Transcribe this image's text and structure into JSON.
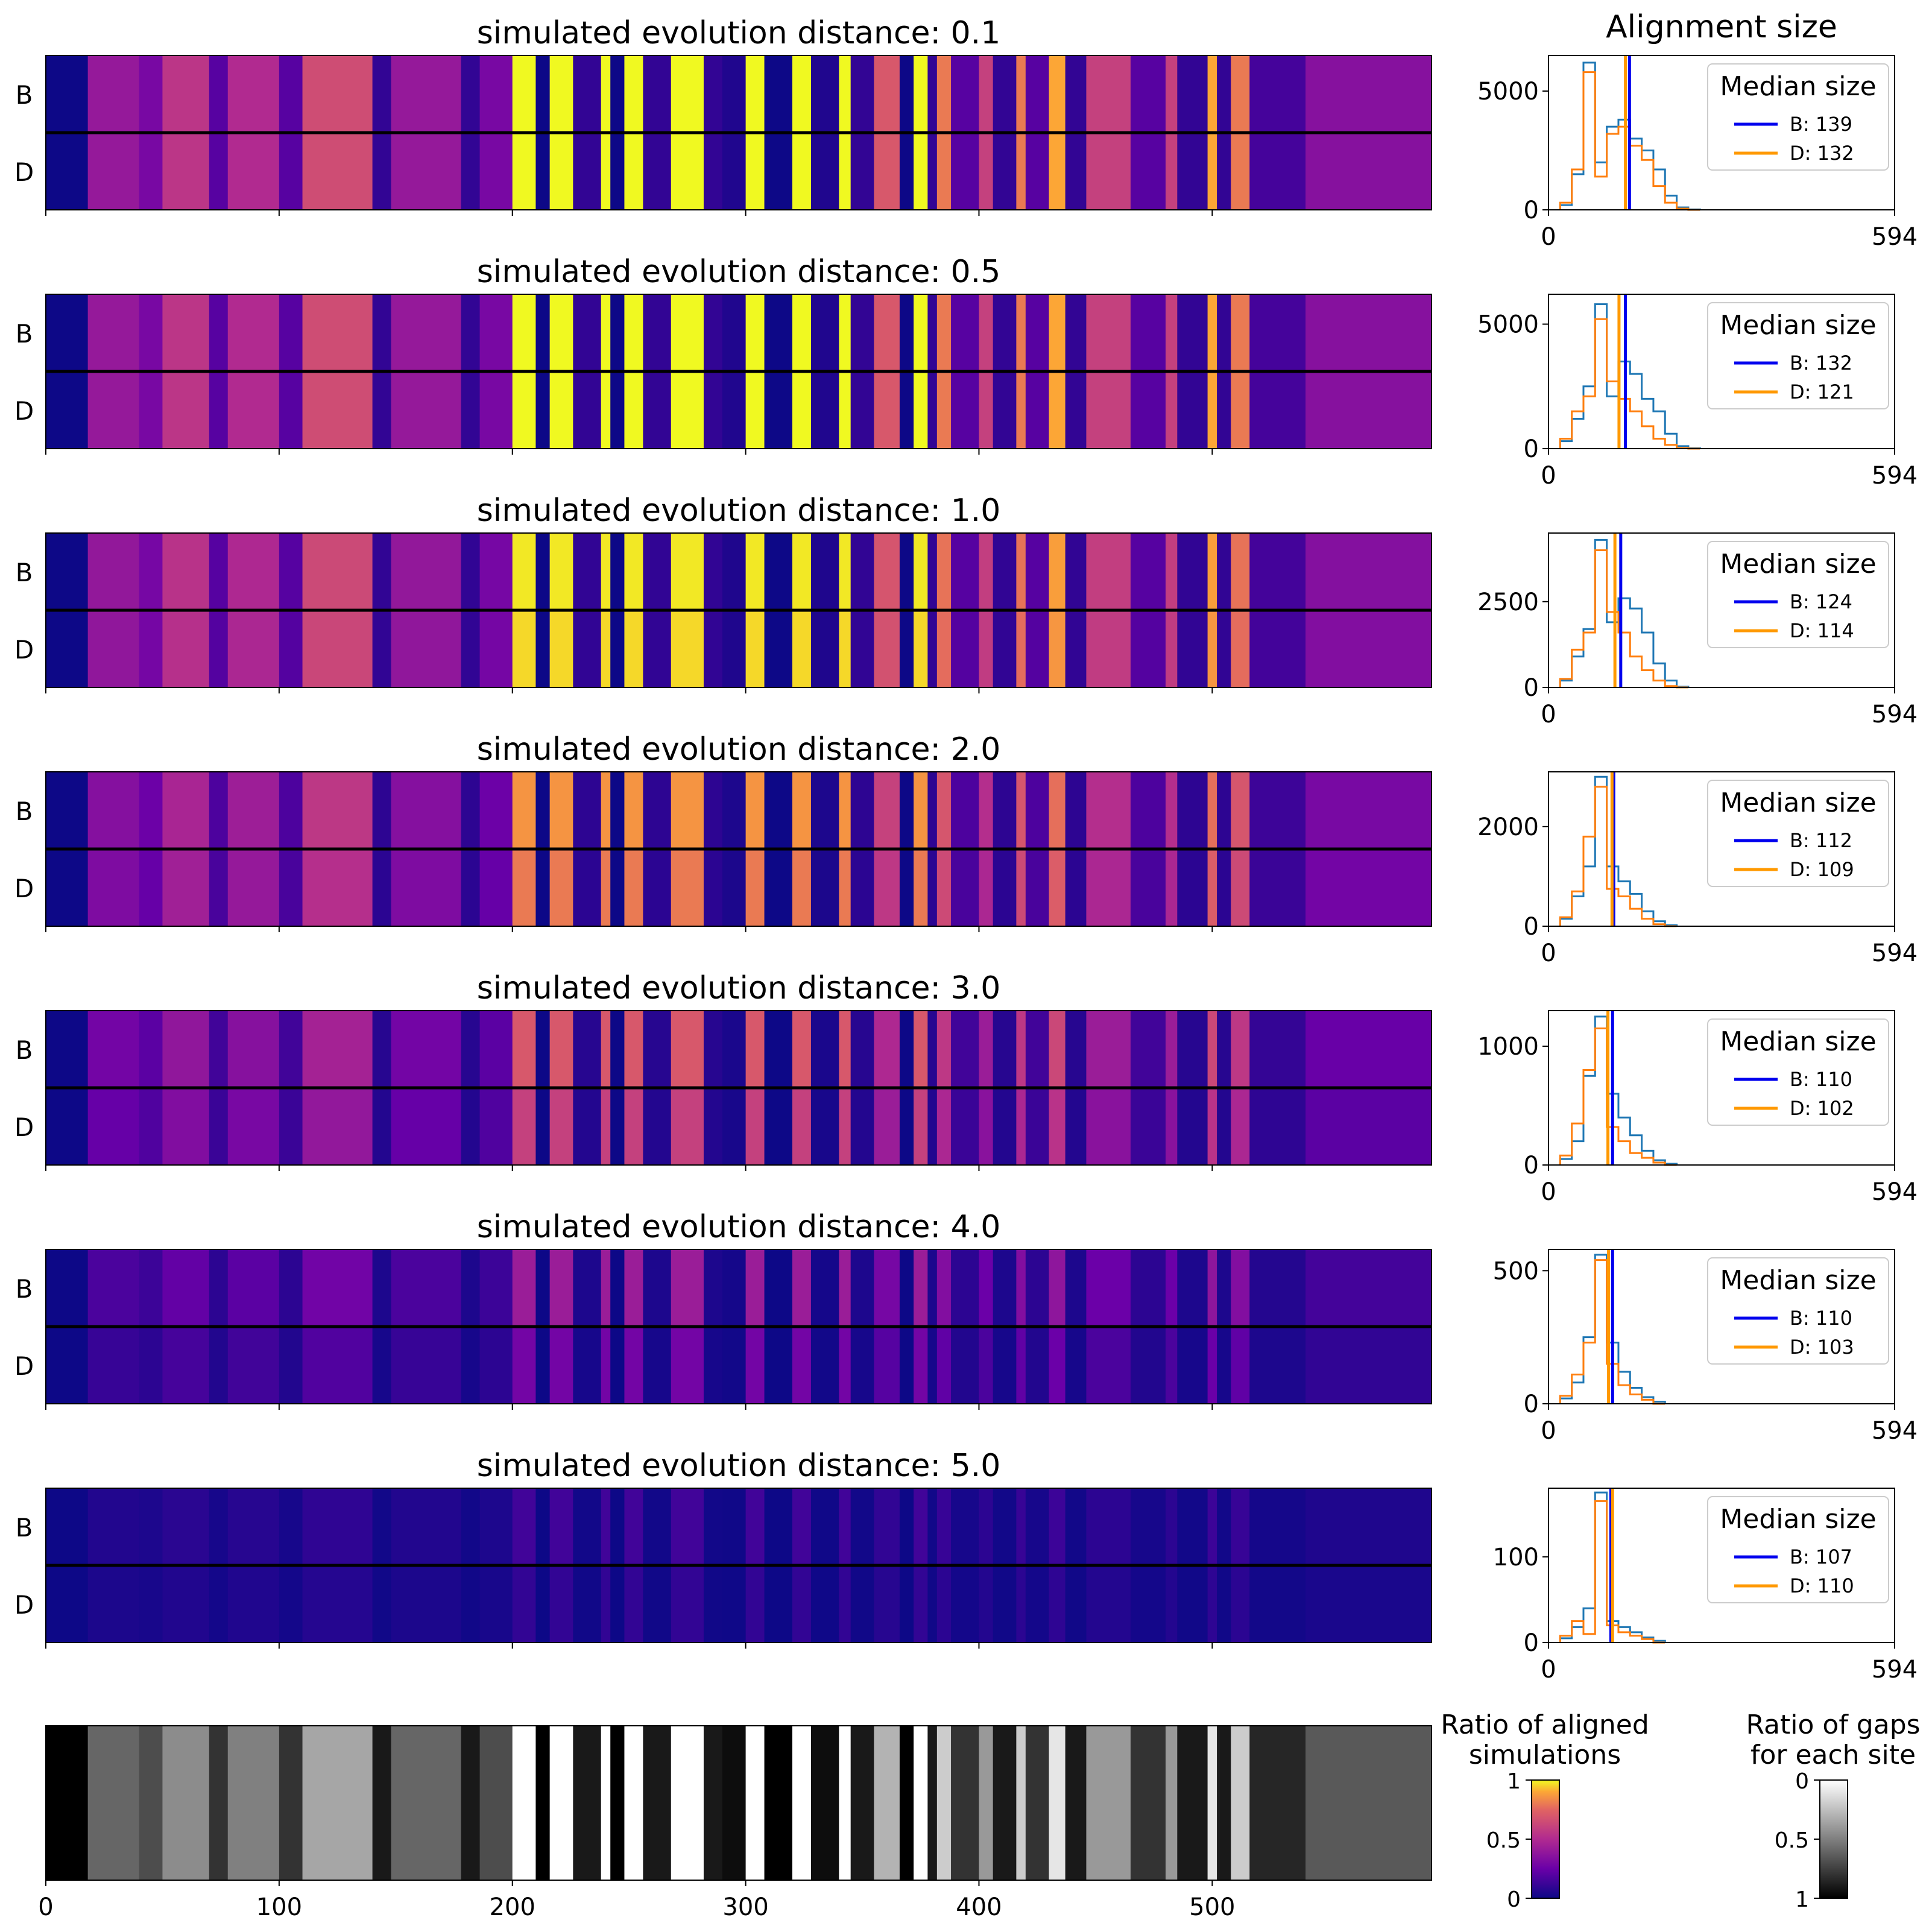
{
  "figure": {
    "hist_column_title": "Alignment size",
    "legend_title": "Median size",
    "row_labels": [
      "B",
      "D"
    ],
    "colorbar_plasma": {
      "title_line1": "Ratio of aligned",
      "title_line2": "simulations",
      "ticks": [
        "1",
        "0.5",
        "0"
      ]
    },
    "colorbar_gray": {
      "title_line1": "Ratio of gaps",
      "title_line2": "for each site",
      "ticks": [
        "0",
        "0.5",
        "1"
      ]
    },
    "colors": {
      "B": "#0000ee",
      "D": "#ff9900",
      "hist_B": "#1f77b4",
      "hist_D": "#ff7f0e"
    }
  },
  "chart_data": [
    {
      "type": "heatmap",
      "title": "simulated evolution distance: 0.1",
      "distance": 0.1,
      "intensity": 1.0,
      "bd_bias": 0.0,
      "xlim": [
        0,
        594
      ],
      "xticks": [
        0,
        100,
        200,
        300,
        400,
        500
      ],
      "show_xtick_labels": false
    },
    {
      "type": "heatmap",
      "title": "simulated evolution distance: 0.5",
      "distance": 0.5,
      "intensity": 1.0,
      "bd_bias": 0.0,
      "xlim": [
        0,
        594
      ],
      "xticks": [
        0,
        100,
        200,
        300,
        400,
        500
      ],
      "show_xtick_labels": false
    },
    {
      "type": "heatmap",
      "title": "simulated evolution distance: 1.0",
      "distance": 1.0,
      "intensity": 0.98,
      "bd_bias": 0.02,
      "xlim": [
        0,
        594
      ],
      "xticks": [
        0,
        100,
        200,
        300,
        400,
        500
      ],
      "show_xtick_labels": false
    },
    {
      "type": "heatmap",
      "title": "simulated evolution distance: 2.0",
      "distance": 2.0,
      "intensity": 0.86,
      "bd_bias": 0.06,
      "xlim": [
        0,
        594
      ],
      "xticks": [
        0,
        100,
        200,
        300,
        400,
        500
      ],
      "show_xtick_labels": false
    },
    {
      "type": "heatmap",
      "title": "simulated evolution distance: 3.0",
      "distance": 3.0,
      "intensity": 0.7,
      "bd_bias": 0.1,
      "xlim": [
        0,
        594
      ],
      "xticks": [
        0,
        100,
        200,
        300,
        400,
        500
      ],
      "show_xtick_labels": false
    },
    {
      "type": "heatmap",
      "title": "simulated evolution distance: 4.0",
      "distance": 4.0,
      "intensity": 0.42,
      "bd_bias": 0.14,
      "xlim": [
        0,
        594
      ],
      "xticks": [
        0,
        100,
        200,
        300,
        400,
        500
      ],
      "show_xtick_labels": false
    },
    {
      "type": "heatmap",
      "title": "simulated evolution distance: 5.0",
      "distance": 5.0,
      "intensity": 0.14,
      "bd_bias": 0.04,
      "xlim": [
        0,
        594
      ],
      "xticks": [
        0,
        100,
        200,
        300,
        400,
        500
      ],
      "show_xtick_labels": false
    },
    {
      "type": "heatmap",
      "title": "",
      "colormap": "gray",
      "xlim": [
        0,
        594
      ],
      "xticks": [
        0,
        100,
        200,
        300,
        400,
        500
      ],
      "xtick_labels": [
        "0",
        "100",
        "200",
        "300",
        "400",
        "500"
      ],
      "gap_ratio_profile": [
        [
          0,
          18,
          1.0
        ],
        [
          18,
          40,
          0.6
        ],
        [
          40,
          50,
          0.7
        ],
        [
          50,
          70,
          0.45
        ],
        [
          70,
          78,
          0.8
        ],
        [
          78,
          100,
          0.5
        ],
        [
          100,
          110,
          0.8
        ],
        [
          110,
          140,
          0.35
        ],
        [
          140,
          148,
          0.9
        ],
        [
          148,
          178,
          0.6
        ],
        [
          178,
          186,
          0.9
        ],
        [
          186,
          200,
          0.7
        ],
        [
          200,
          210,
          0.0
        ],
        [
          210,
          216,
          1.0
        ],
        [
          216,
          226,
          0.0
        ],
        [
          226,
          238,
          0.9
        ],
        [
          238,
          242,
          0.0
        ],
        [
          242,
          248,
          1.0
        ],
        [
          248,
          256,
          0.0
        ],
        [
          256,
          268,
          0.9
        ],
        [
          268,
          282,
          0.0
        ],
        [
          282,
          290,
          0.9
        ],
        [
          290,
          300,
          0.95
        ],
        [
          300,
          308,
          0.0
        ],
        [
          308,
          320,
          1.0
        ],
        [
          320,
          328,
          0.0
        ],
        [
          328,
          340,
          0.95
        ],
        [
          340,
          345,
          0.0
        ],
        [
          345,
          355,
          0.9
        ],
        [
          355,
          366,
          0.3
        ],
        [
          366,
          372,
          1.0
        ],
        [
          372,
          378,
          0.0
        ],
        [
          378,
          382,
          0.9
        ],
        [
          382,
          388,
          0.2
        ],
        [
          388,
          400,
          0.8
        ],
        [
          400,
          406,
          0.4
        ],
        [
          406,
          416,
          0.9
        ],
        [
          416,
          420,
          0.2
        ],
        [
          420,
          430,
          0.8
        ],
        [
          430,
          437,
          0.1
        ],
        [
          437,
          446,
          0.9
        ],
        [
          446,
          465,
          0.4
        ],
        [
          465,
          480,
          0.8
        ],
        [
          480,
          485,
          0.4
        ],
        [
          485,
          498,
          0.9
        ],
        [
          498,
          502,
          0.1
        ],
        [
          502,
          508,
          0.9
        ],
        [
          508,
          516,
          0.2
        ],
        [
          516,
          540,
          0.85
        ],
        [
          540,
          594,
          0.65
        ]
      ]
    }
  ],
  "histograms": [
    {
      "type": "histogram",
      "xlim": [
        0,
        594
      ],
      "xtick_labels": [
        "0",
        "594"
      ],
      "ylim": [
        0,
        6500
      ],
      "yticks": [
        0,
        5000
      ],
      "legend": [
        {
          "name": "B",
          "label": "B: 139",
          "median": 139
        },
        {
          "name": "D",
          "label": "D: 132",
          "median": 132
        }
      ],
      "series": [
        {
          "name": "B",
          "counts": [
            200,
            1500,
            6200,
            2000,
            3500,
            3800,
            3000,
            2500,
            1700,
            600,
            100,
            20
          ]
        },
        {
          "name": "D",
          "counts": [
            300,
            1700,
            5800,
            1400,
            3200,
            3500,
            2700,
            2100,
            1000,
            300,
            50,
            0
          ]
        }
      ],
      "bins": [
        20,
        40,
        60,
        80,
        100,
        120,
        140,
        160,
        180,
        200,
        220,
        240,
        260
      ]
    },
    {
      "type": "histogram",
      "xlim": [
        0,
        594
      ],
      "xtick_labels": [
        "0",
        "594"
      ],
      "ylim": [
        0,
        6200
      ],
      "yticks": [
        0,
        5000
      ],
      "legend": [
        {
          "name": "B",
          "label": "B: 132",
          "median": 132
        },
        {
          "name": "D",
          "label": "D: 121",
          "median": 121
        }
      ],
      "series": [
        {
          "name": "B",
          "counts": [
            300,
            1200,
            2500,
            5800,
            2100,
            3500,
            3000,
            2000,
            1500,
            600,
            100,
            20
          ]
        },
        {
          "name": "D",
          "counts": [
            400,
            1500,
            2100,
            5200,
            2700,
            2000,
            1500,
            900,
            400,
            150,
            20,
            0
          ]
        }
      ],
      "bins": [
        20,
        40,
        60,
        80,
        100,
        120,
        140,
        160,
        180,
        200,
        220,
        240,
        260
      ]
    },
    {
      "type": "histogram",
      "xlim": [
        0,
        594
      ],
      "xtick_labels": [
        "0",
        "594"
      ],
      "ylim": [
        0,
        4500
      ],
      "yticks": [
        0,
        2500
      ],
      "legend": [
        {
          "name": "B",
          "label": "B: 124",
          "median": 124
        },
        {
          "name": "D",
          "label": "D: 114",
          "median": 114
        }
      ],
      "series": [
        {
          "name": "B",
          "counts": [
            200,
            900,
            1700,
            4300,
            1900,
            2600,
            2300,
            1600,
            700,
            200,
            20
          ]
        },
        {
          "name": "D",
          "counts": [
            250,
            1100,
            1600,
            4000,
            2200,
            1600,
            900,
            500,
            200,
            40,
            0
          ]
        }
      ],
      "bins": [
        20,
        40,
        60,
        80,
        100,
        120,
        140,
        160,
        180,
        200,
        220,
        240
      ]
    },
    {
      "type": "histogram",
      "xlim": [
        0,
        594
      ],
      "xtick_labels": [
        "0",
        "594"
      ],
      "ylim": [
        0,
        3100
      ],
      "yticks": [
        0,
        2000
      ],
      "legend": [
        {
          "name": "B",
          "label": "B: 112",
          "median": 112
        },
        {
          "name": "D",
          "label": "D: 109",
          "median": 109
        }
      ],
      "series": [
        {
          "name": "B",
          "counts": [
            150,
            600,
            1200,
            3000,
            1200,
            900,
            650,
            300,
            100,
            20
          ]
        },
        {
          "name": "D",
          "counts": [
            180,
            700,
            1800,
            2800,
            750,
            600,
            350,
            150,
            40,
            0
          ]
        }
      ],
      "bins": [
        20,
        40,
        60,
        80,
        100,
        120,
        140,
        160,
        180,
        200,
        220
      ]
    },
    {
      "type": "histogram",
      "xlim": [
        0,
        594
      ],
      "xtick_labels": [
        "0",
        "594"
      ],
      "ylim": [
        0,
        1300
      ],
      "yticks": [
        0,
        1000
      ],
      "legend": [
        {
          "name": "B",
          "label": "B: 110",
          "median": 110
        },
        {
          "name": "D",
          "label": "D: 102",
          "median": 102
        }
      ],
      "series": [
        {
          "name": "B",
          "counts": [
            50,
            200,
            750,
            1250,
            600,
            400,
            250,
            120,
            40,
            10
          ]
        },
        {
          "name": "D",
          "counts": [
            80,
            350,
            800,
            1150,
            320,
            200,
            100,
            60,
            20,
            0
          ]
        }
      ],
      "bins": [
        20,
        40,
        60,
        80,
        100,
        120,
        140,
        160,
        180,
        200,
        220
      ]
    },
    {
      "type": "histogram",
      "xlim": [
        0,
        594
      ],
      "xtick_labels": [
        "0",
        "594"
      ],
      "ylim": [
        0,
        580
      ],
      "yticks": [
        0,
        500
      ],
      "legend": [
        {
          "name": "B",
          "label": "B: 110",
          "median": 110
        },
        {
          "name": "D",
          "label": "D: 103",
          "median": 103
        }
      ],
      "series": [
        {
          "name": "B",
          "counts": [
            20,
            80,
            250,
            560,
            230,
            120,
            60,
            25,
            8
          ]
        },
        {
          "name": "D",
          "counts": [
            30,
            110,
            230,
            540,
            150,
            70,
            35,
            15,
            0
          ]
        }
      ],
      "bins": [
        20,
        40,
        60,
        80,
        100,
        120,
        140,
        160,
        180,
        200
      ]
    },
    {
      "type": "histogram",
      "xlim": [
        0,
        594
      ],
      "xtick_labels": [
        "0",
        "594"
      ],
      "ylim": [
        0,
        180
      ],
      "yticks": [
        0,
        100
      ],
      "legend": [
        {
          "name": "B",
          "label": "B: 107",
          "median": 107
        },
        {
          "name": "D",
          "label": "D: 110",
          "median": 110
        }
      ],
      "series": [
        {
          "name": "B",
          "counts": [
            5,
            18,
            40,
            175,
            25,
            18,
            12,
            6,
            2
          ]
        },
        {
          "name": "D",
          "counts": [
            8,
            25,
            10,
            165,
            20,
            12,
            8,
            4,
            0
          ]
        }
      ],
      "bins": [
        20,
        40,
        60,
        80,
        100,
        120,
        140,
        160,
        180,
        200
      ]
    }
  ]
}
